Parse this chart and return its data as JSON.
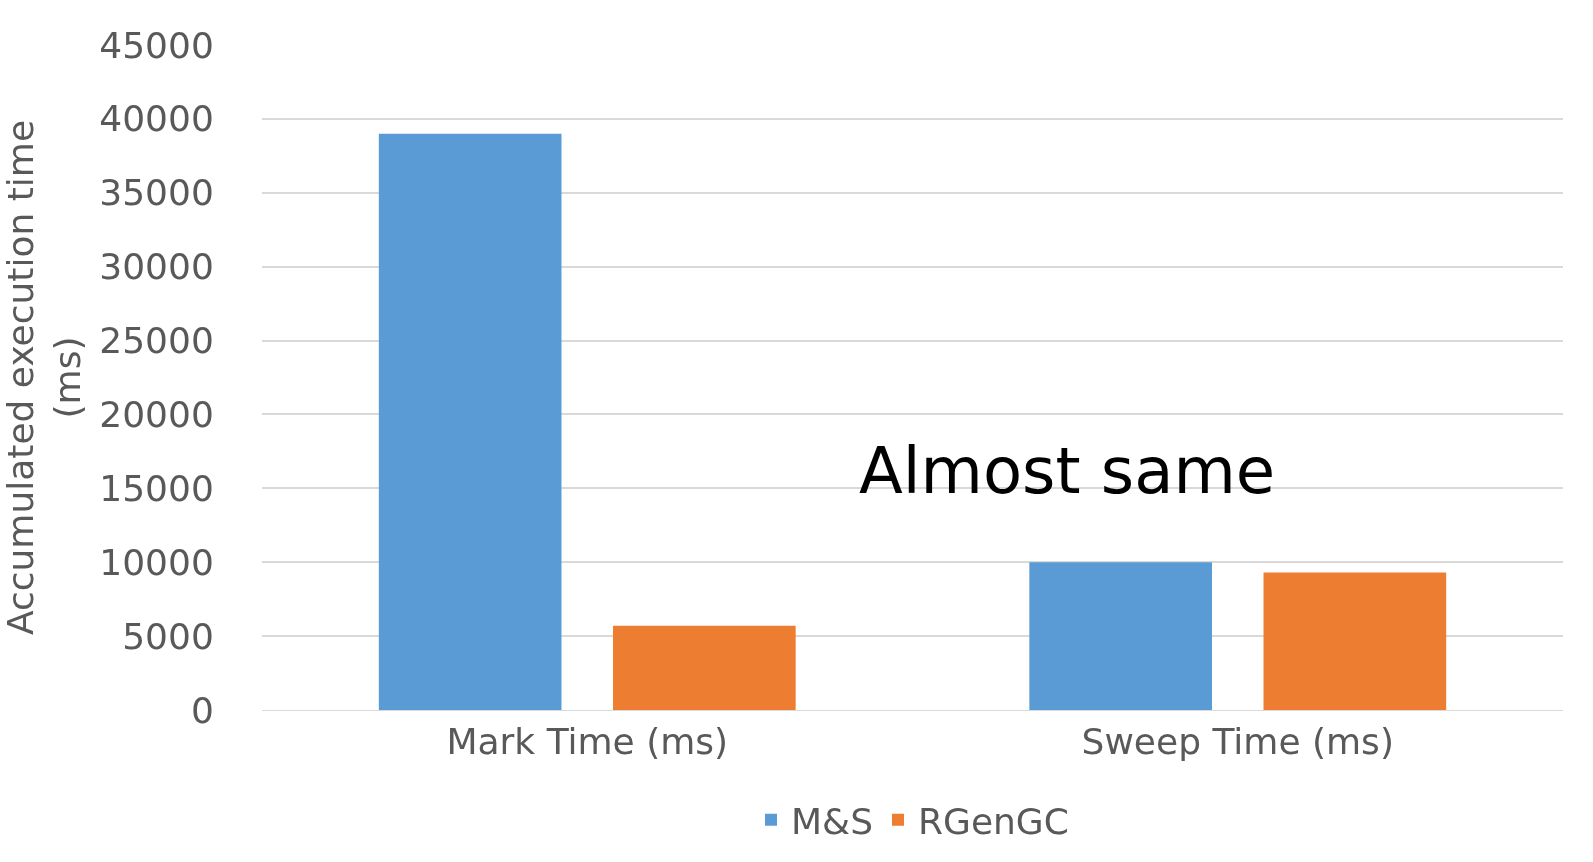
{
  "chart_data": {
    "type": "bar",
    "ylabel": "Accumulated execution time (ms)",
    "categories": [
      "Mark Time (ms)",
      "Sweep Time (ms)"
    ],
    "series": [
      {
        "name": "M&S",
        "color": "#5b9bd5",
        "values": [
          39000,
          10000
        ]
      },
      {
        "name": "RGenGC",
        "color": "#ed7d31",
        "values": [
          5700,
          9300
        ]
      }
    ],
    "ylim": [
      0,
      45000
    ],
    "yticks": [
      0,
      5000,
      10000,
      15000,
      20000,
      25000,
      30000,
      35000,
      40000,
      45000
    ],
    "grid": "y",
    "legend": "bottom",
    "annotations": [
      "Almost same"
    ]
  }
}
